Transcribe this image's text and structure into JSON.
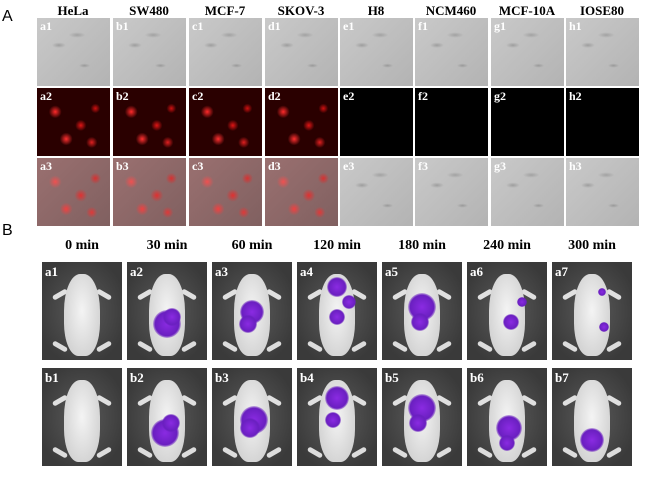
{
  "panelA": {
    "letter": "A",
    "columns": [
      "HeLa",
      "SW480",
      "MCF-7",
      "SKOV-3",
      "H8",
      "NCM460",
      "MCF-10A",
      "IOSE80"
    ],
    "rows": [
      [
        "a1",
        "b1",
        "c1",
        "d1",
        "e1",
        "f1",
        "g1",
        "h1"
      ],
      [
        "a2",
        "b2",
        "c2",
        "d2",
        "e2",
        "f2",
        "g2",
        "h2"
      ],
      [
        "a3",
        "b3",
        "c3",
        "d3",
        "e3",
        "f3",
        "g3",
        "h3"
      ]
    ]
  },
  "panelB": {
    "letter": "B",
    "times": [
      "0 min",
      "30 min",
      "60 min",
      "120 min",
      "180 min",
      "240 min",
      "300 min"
    ],
    "rows": [
      [
        "a1",
        "a2",
        "a3",
        "a4",
        "a5",
        "a6",
        "a7"
      ],
      [
        "b1",
        "b2",
        "b3",
        "b4",
        "b5",
        "b6",
        "b7"
      ]
    ]
  },
  "colors": {
    "fluorescence": "#e01515",
    "bioluminescence": "#7a22d8",
    "background_dark": "#000000"
  }
}
